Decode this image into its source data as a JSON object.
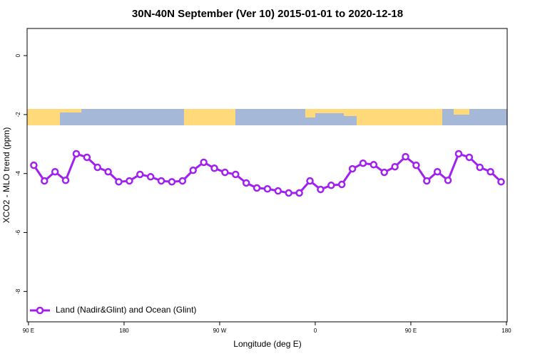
{
  "chart_data": {
    "type": "line",
    "title": "30N-40N September (Ver 10)   2015-01-01 to 2020-12-18",
    "x_label": "Longitude (deg E)",
    "y_label": "XCO2 - MLO trend (ppm)",
    "x": [
      95,
      105,
      115,
      125,
      135,
      145,
      155,
      165,
      175,
      185,
      195,
      205,
      215,
      225,
      235,
      245,
      255,
      265,
      275,
      285,
      295,
      305,
      315,
      325,
      335,
      345,
      355,
      365,
      375,
      385,
      395,
      405,
      415,
      425,
      435,
      445,
      455,
      465,
      475,
      485,
      495,
      505,
      515,
      525,
      535
    ],
    "series": [
      {
        "name": "Land (Nadir&Glint) and Ocean (Glint)",
        "color": "#a020f0",
        "values": [
          -3.72,
          -4.25,
          -3.94,
          -4.23,
          -3.33,
          -3.45,
          -3.79,
          -3.94,
          -4.28,
          -4.25,
          -4.03,
          -4.11,
          -4.25,
          -4.28,
          -4.25,
          -3.89,
          -3.62,
          -3.82,
          -3.96,
          -4.03,
          -4.32,
          -4.49,
          -4.52,
          -4.59,
          -4.66,
          -4.66,
          -4.25,
          -4.54,
          -4.4,
          -4.37,
          -3.84,
          -3.65,
          -3.7,
          -3.96,
          -3.77,
          -3.43,
          -3.72,
          -4.25,
          -3.94,
          -4.23,
          -3.33,
          -3.45,
          -3.79,
          -3.94,
          -4.28
        ]
      }
    ],
    "xlim": [
      88.7,
      540.7
    ],
    "xticks": [
      {
        "value": 90,
        "label": "90 E"
      },
      180,
      {
        "value": 270,
        "label": "90 W"
      },
      {
        "value": 360,
        "label": "0"
      },
      {
        "value": 450,
        "label": "90 E"
      },
      {
        "value": 540,
        "label": "180"
      }
    ],
    "ylim": [
      -9.03,
      0.92
    ],
    "yticks": [
      -8,
      -6,
      -4,
      -2,
      0
    ],
    "legend": "bottomleft"
  }
}
